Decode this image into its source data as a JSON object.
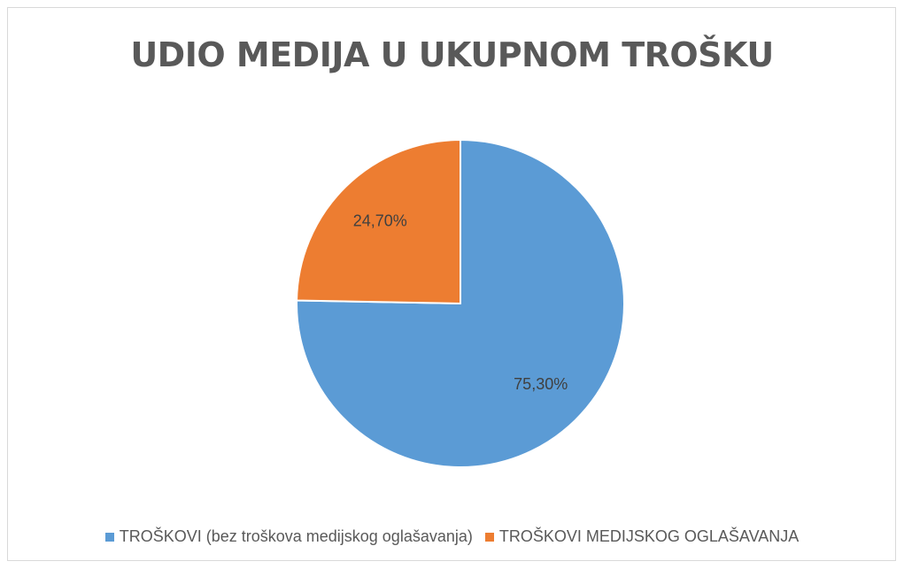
{
  "chart_data": {
    "type": "pie",
    "title": "UDIO MEDIJA U UKUPNOM TROŠKU",
    "categories": [
      "TROŠKOVI (bez troškova medijskog oglašavanja)",
      "TROŠKOVI MEDIJSKOG OGLAŠAVANJA"
    ],
    "values": [
      75.3,
      24.7
    ],
    "data_labels": [
      "75,30%",
      "24,70%"
    ],
    "colors": [
      "#5b9bd5",
      "#ed7d31"
    ],
    "legend_position": "bottom",
    "start_angle_deg": 0,
    "direction": "clockwise"
  }
}
